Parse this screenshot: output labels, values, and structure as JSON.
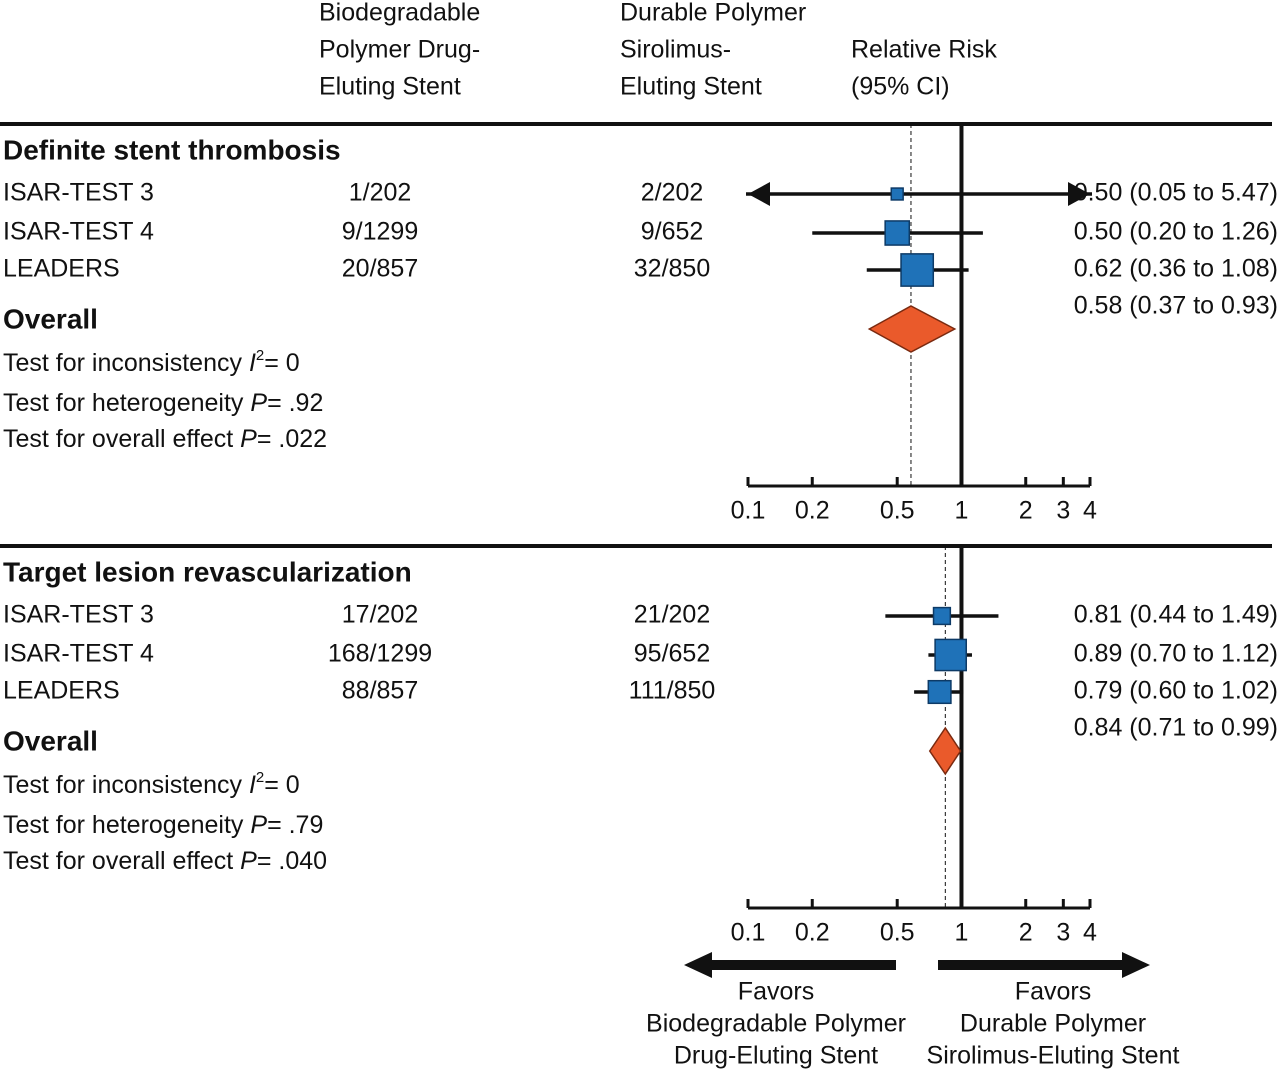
{
  "column_headers": [
    [
      "Biodegradable",
      "Polymer Drug-",
      "Eluting Stent"
    ],
    [
      "Durable Polymer",
      "Sirolimus-",
      "Eluting Stent"
    ],
    [
      "Relative Risk",
      "(95% CI)"
    ]
  ],
  "favors": [
    [
      "Favors",
      "Biodegradable Polymer",
      "Drug-Eluting Stent"
    ],
    [
      "Favors",
      "Durable Polymer",
      "Sirolimus-Eluting Stent"
    ]
  ],
  "chart_data": [
    {
      "type": "forest",
      "title": "Definite stent thrombosis",
      "categories": [
        "ISAR-TEST 3",
        "ISAR-TEST 4",
        "LEADERS"
      ],
      "group1": [
        "1/202",
        "9/1299",
        "20/857"
      ],
      "group2": [
        "2/202",
        "9/652",
        "32/850"
      ],
      "values": [
        0.5,
        0.5,
        0.62
      ],
      "ci_low": [
        0.05,
        0.2,
        0.36
      ],
      "ci_high": [
        5.47,
        1.26,
        1.08
      ],
      "weights": [
        8,
        33,
        59
      ],
      "value_labels": [
        "0.50 (0.05 to 5.47)",
        "0.50 (0.20 to 1.26)",
        "0.62 (0.36 to 1.08)"
      ],
      "overall": {
        "label": "Overall",
        "value": 0.58,
        "ci_low": 0.37,
        "ci_high": 0.93,
        "value_label": "0.58 (0.37 to 0.93)"
      },
      "stats": [
        {
          "label": "Test for inconsistency",
          "symbol": "I",
          "superscript": "2",
          "text": "= 0"
        },
        {
          "label": "Test for heterogeneity",
          "symbol": "P",
          "text": "= .92"
        },
        {
          "label": "Test for overall effect",
          "symbol": "P",
          "text": "= .022"
        }
      ],
      "xlim": [
        0.1,
        4
      ],
      "xticks": [
        0.1,
        0.2,
        0.5,
        1,
        2,
        3,
        4
      ],
      "log_scale": true,
      "color": "#1f72b8",
      "overall_color": "#ea5a2b"
    },
    {
      "type": "forest",
      "title": "Target lesion revascularization",
      "categories": [
        "ISAR-TEST 3",
        "ISAR-TEST 4",
        "LEADERS"
      ],
      "group1": [
        "17/202",
        "168/1299",
        "88/857"
      ],
      "group2": [
        "21/202",
        "95/652",
        "111/850"
      ],
      "values": [
        0.81,
        0.89,
        0.79
      ],
      "ci_low": [
        0.44,
        0.7,
        0.6
      ],
      "ci_high": [
        1.49,
        1.12,
        1.02
      ],
      "weights": [
        16,
        55,
        29
      ],
      "value_labels": [
        "0.81 (0.44 to 1.49)",
        "0.89 (0.70 to 1.12)",
        "0.79 (0.60 to 1.02)"
      ],
      "overall": {
        "label": "Overall",
        "value": 0.84,
        "ci_low": 0.71,
        "ci_high": 0.99,
        "value_label": "0.84 (0.71 to 0.99)"
      },
      "stats": [
        {
          "label": "Test for inconsistency",
          "symbol": "I",
          "superscript": "2",
          "text": "= 0"
        },
        {
          "label": "Test for heterogeneity",
          "symbol": "P",
          "text": "= .79"
        },
        {
          "label": "Test for overall effect",
          "symbol": "P",
          "text": "= .040"
        }
      ],
      "xlim": [
        0.1,
        4
      ],
      "xticks": [
        0.1,
        0.2,
        0.5,
        1,
        2,
        3,
        4
      ],
      "log_scale": true,
      "color": "#1f72b8",
      "overall_color": "#ea5a2b"
    }
  ]
}
